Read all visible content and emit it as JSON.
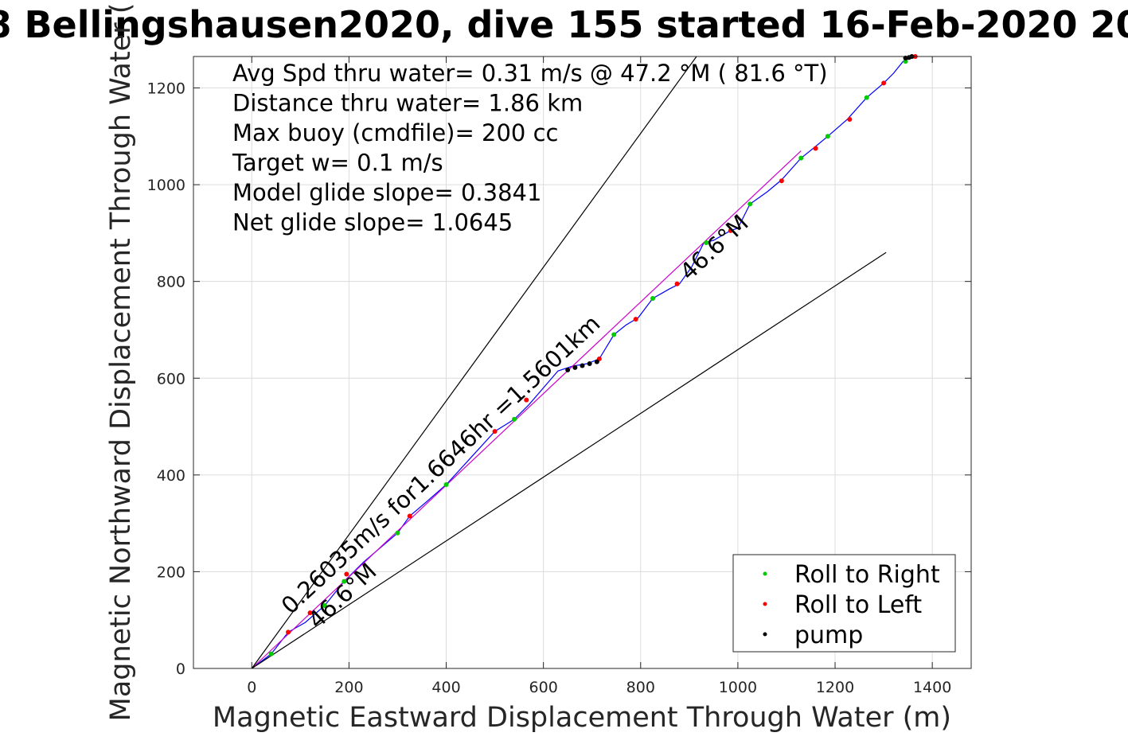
{
  "chart_data": {
    "type": "line",
    "title": "8 Bellingshausen2020, dive 155 started 16-Feb-2020 20",
    "xlabel": "Magnetic Eastward Displacement Through Water (m)",
    "ylabel": "Magnetic Northward Displacement Through Water (",
    "xlim": [
      -120,
      1480
    ],
    "ylim": [
      0,
      1265
    ],
    "xticks": [
      0,
      200,
      400,
      600,
      800,
      1000,
      1200,
      1400
    ],
    "yticks": [
      0,
      200,
      400,
      600,
      800,
      1000,
      1200
    ],
    "grid": true,
    "legend_position": "bottom-right",
    "info_lines": [
      "Avg Spd thru water=  0.31 m/s @  47.2 °M ( 81.6 °T)",
      "Distance thru water=  1.86 km",
      "Max buoy (cmdfile)= 200 cc",
      "Target w= 0.1 m/s",
      "Model glide slope= 0.3841",
      "Net glide slope= 1.0645"
    ],
    "annotations": [
      {
        "text": "0.26035m/s for1.6646hr =1.5601km",
        "x": 80,
        "y": 110,
        "angle_deg": -43
      },
      {
        "text": "46.6°M",
        "x": 135,
        "y": 80,
        "angle_deg": -43
      },
      {
        "text": "46.6°M",
        "x": 900,
        "y": 800,
        "angle_deg": -43
      }
    ],
    "series": [
      {
        "name": "track",
        "color": "#0000ff",
        "x": [
          0,
          40,
          75,
          110,
          150,
          190,
          230,
          265,
          300,
          325,
          360,
          400,
          450,
          500,
          540,
          570,
          600,
          630,
          660,
          690,
          715,
          745,
          770,
          795,
          825,
          860,
          880,
          905,
          930,
          950,
          985,
          1000,
          1025,
          1060,
          1090,
          1130,
          1155,
          1185,
          1225,
          1265,
          1300,
          1320,
          1340,
          1355,
          1365
        ],
        "y": [
          0,
          30,
          75,
          95,
          130,
          180,
          220,
          250,
          280,
          315,
          345,
          380,
          435,
          490,
          515,
          545,
          580,
          615,
          625,
          630,
          640,
          690,
          710,
          725,
          765,
          785,
          795,
          830,
          880,
          885,
          905,
          910,
          960,
          985,
          1010,
          1055,
          1075,
          1100,
          1135,
          1180,
          1210,
          1230,
          1255,
          1262,
          1265
        ]
      },
      {
        "name": "net heading line",
        "color": "#cc00cc",
        "x": [
          0,
          1130
        ],
        "y": [
          0,
          1070
        ]
      },
      {
        "name": "envelope upper",
        "color": "#000000",
        "x": [
          0,
          915
        ],
        "y": [
          0,
          1265
        ]
      },
      {
        "name": "envelope lower",
        "color": "#000000",
        "x": [
          0,
          1305
        ],
        "y": [
          0,
          860
        ]
      },
      {
        "name": "Roll to Right",
        "color": "#00cc00",
        "marker": true,
        "x": [
          40,
          150,
          190,
          300,
          400,
          540,
          745,
          825,
          935,
          1025,
          1130,
          1185,
          1265,
          1345
        ],
        "y": [
          30,
          130,
          180,
          280,
          380,
          515,
          690,
          765,
          880,
          960,
          1055,
          1100,
          1180,
          1255
        ]
      },
      {
        "name": "Roll to Left",
        "color": "#ff0000",
        "marker": true,
        "x": [
          75,
          120,
          195,
          325,
          500,
          565,
          715,
          790,
          875,
          985,
          1090,
          1160,
          1230,
          1300,
          1365
        ],
        "y": [
          75,
          115,
          195,
          315,
          490,
          555,
          640,
          722,
          795,
          905,
          1008,
          1075,
          1135,
          1210,
          1265
        ]
      },
      {
        "name": "pump",
        "color": "#000000",
        "marker": true,
        "x": [
          650,
          665,
          680,
          695,
          710,
          1345,
          1352,
          1358
        ],
        "y": [
          617,
          622,
          626,
          630,
          634,
          1262,
          1263,
          1265
        ]
      }
    ],
    "legend": [
      {
        "label": "Roll to Right",
        "color": "#00cc00"
      },
      {
        "label": "Roll to Left",
        "color": "#ff0000"
      },
      {
        "label": "pump",
        "color": "#000000"
      }
    ]
  }
}
